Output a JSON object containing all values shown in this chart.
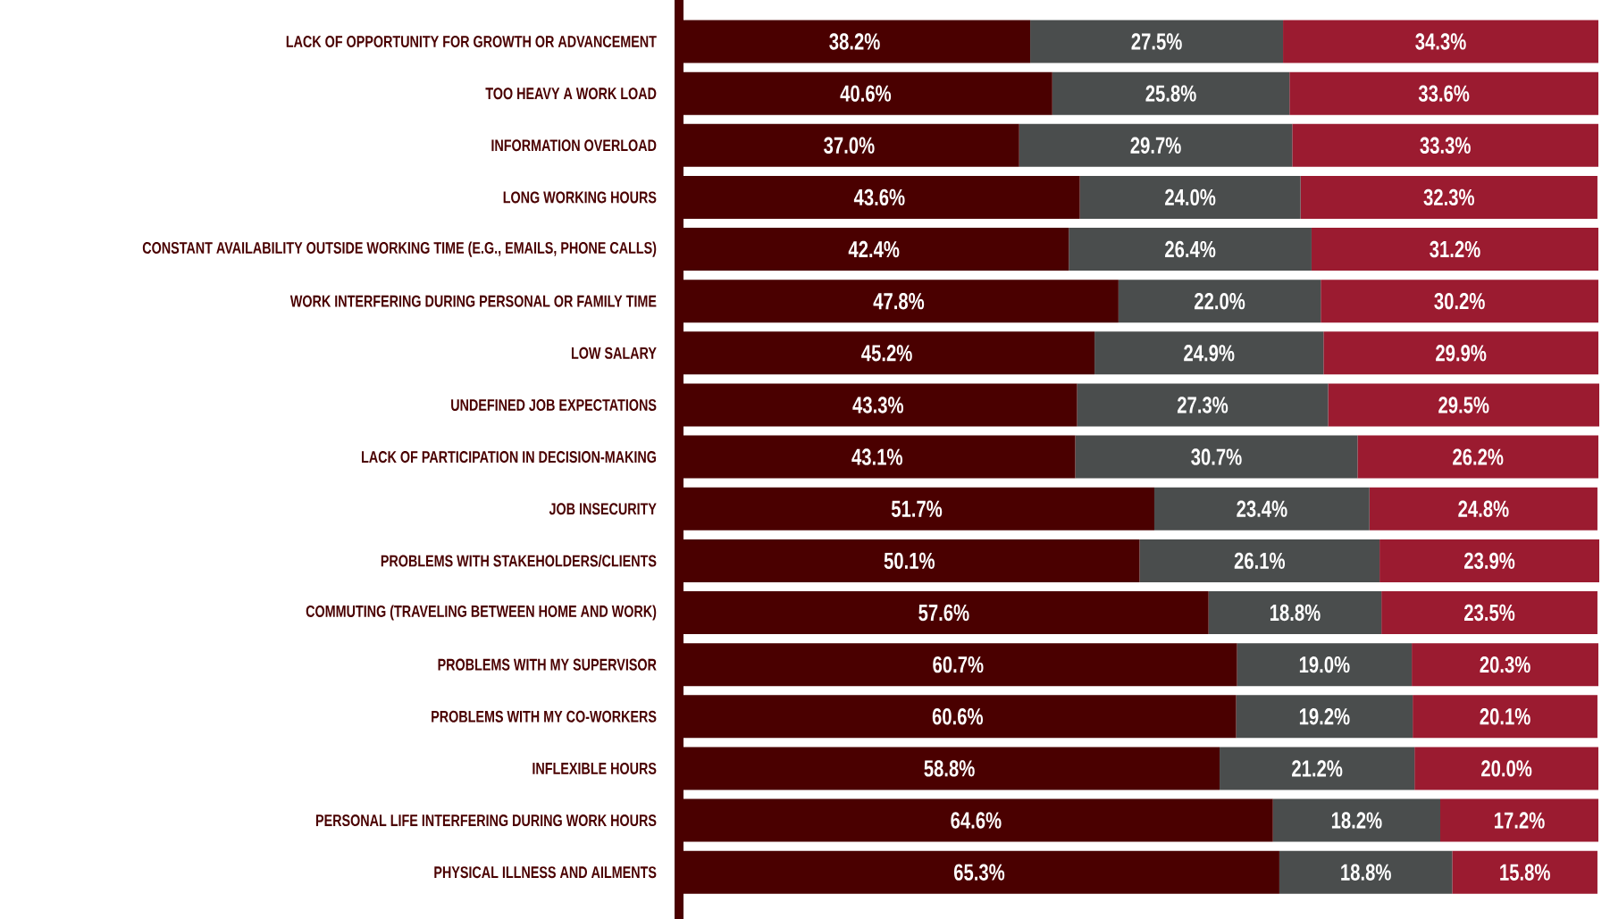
{
  "chart_data": {
    "type": "bar",
    "orientation": "horizontal",
    "stacked": true,
    "tick_labels": "y",
    "categories": [
      "LACK OF OPPORTUNITY FOR GROWTH OR ADVANCEMENT",
      "TOO HEAVY A WORK LOAD",
      "INFORMATION OVERLOAD",
      "LONG WORKING HOURS",
      "CONSTANT AVAILABILITY OUTSIDE WORKING TIME (E.G., EMAILS, PHONE CALLS)",
      "WORK INTERFERING DURING PERSONAL OR FAMILY TIME",
      "LOW SALARY",
      "UNDEFINED JOB EXPECTATIONS",
      "LACK OF PARTICIPATION IN DECISION-MAKING",
      "JOB INSECURITY",
      "PROBLEMS WITH STAKEHOLDERS/CLIENTS",
      "COMMUTING (TRAVELING BETWEEN HOME AND WORK)",
      "PROBLEMS WITH MY SUPERVISOR",
      "PROBLEMS WITH MY CO-WORKERS",
      "INFLEXIBLE HOURS",
      "PERSONAL LIFE INTERFERING DURING WORK HOURS",
      "PHYSICAL ILLNESS AND AILMENTS"
    ],
    "series": [
      {
        "color": "#4a0000",
        "values": [
          38.2,
          40.6,
          37.0,
          43.6,
          42.4,
          47.8,
          45.2,
          43.3,
          43.1,
          51.7,
          50.1,
          57.6,
          60.7,
          60.6,
          58.8,
          64.6,
          65.3
        ],
        "value_labels": [
          "38.2%",
          "40.6%",
          "37.0%",
          "43.6%",
          "42.4%",
          "47.8%",
          "45.2%",
          "43.3%",
          "43.1%",
          "51.7%",
          "50.1%",
          "57.6%",
          "60.7%",
          "60.6%",
          "58.8%",
          "64.6%",
          "65.3%"
        ]
      },
      {
        "color": "#4a4d4d",
        "values": [
          27.5,
          25.8,
          29.7,
          24.0,
          26.4,
          22.0,
          24.9,
          27.3,
          30.7,
          23.4,
          26.1,
          18.8,
          19.0,
          19.2,
          21.2,
          18.2,
          18.8
        ],
        "value_labels": [
          "27.5%",
          "25.8%",
          "29.7%",
          "24.0%",
          "26.4%",
          "22.0%",
          "24.9%",
          "27.3%",
          "30.7%",
          "23.4%",
          "26.1%",
          "18.8%",
          "19.0%",
          "19.2%",
          "21.2%",
          "18.2%",
          "18.8%"
        ]
      },
      {
        "color": "#9b1b30",
        "values": [
          34.3,
          33.6,
          33.3,
          32.3,
          31.2,
          30.2,
          29.9,
          29.5,
          26.2,
          24.8,
          23.9,
          23.5,
          20.3,
          20.1,
          20.0,
          17.2,
          15.8
        ],
        "value_labels": [
          "34.3%",
          "33.6%",
          "33.3%",
          "32.3%",
          "31.2%",
          "30.2%",
          "29.9%",
          "29.5%",
          "26.2%",
          "24.8%",
          "23.9%",
          "23.5%",
          "20.3%",
          "20.1%",
          "20.0%",
          "17.2%",
          "15.8%"
        ]
      }
    ]
  }
}
